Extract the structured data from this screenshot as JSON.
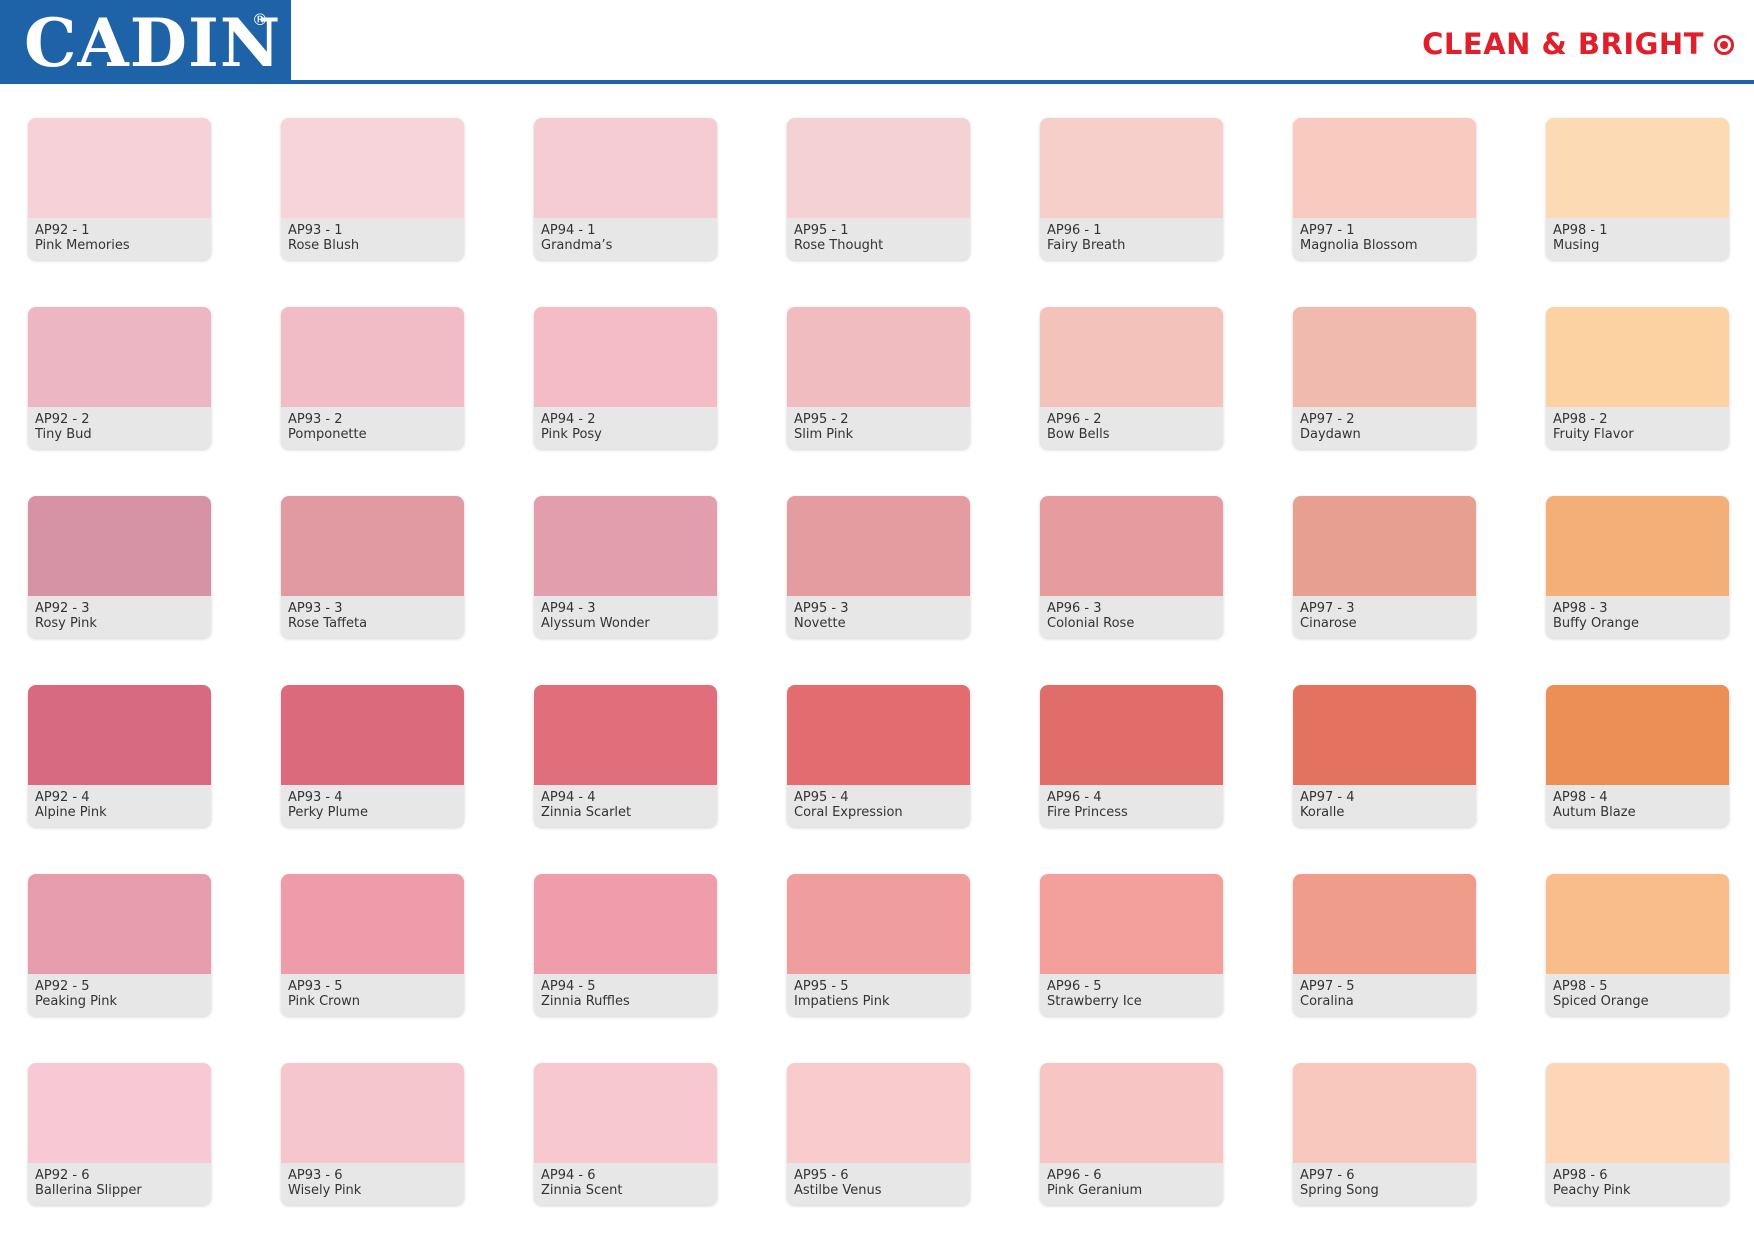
{
  "header": {
    "brand": "CADIN",
    "registered_mark": "®",
    "tagline": "CLEAN & BRIGHT",
    "colors": {
      "brand_blue": "#1e63a8",
      "tagline_red": "#e01f2b"
    }
  },
  "swatches": [
    [
      {
        "code": "AP92 - 1",
        "name": "Pink Memories",
        "color": "#f6d2d8"
      },
      {
        "code": "AP93 - 1",
        "name": "Rose Blush",
        "color": "#f7d3da"
      },
      {
        "code": "AP94 - 1",
        "name": "Grandma’s",
        "color": "#f5cbd4"
      },
      {
        "code": "AP95 - 1",
        "name": "Rose Thought",
        "color": "#f3d1d4"
      },
      {
        "code": "AP96 - 1",
        "name": "Fairy Breath",
        "color": "#f7cfca"
      },
      {
        "code": "AP97 - 1",
        "name": "Magnolia Blossom",
        "color": "#f9cbc0"
      },
      {
        "code": "AP98 - 1",
        "name": "Musing",
        "color": "#fcdab4"
      }
    ],
    [
      {
        "code": "AP92 - 2",
        "name": "Tiny Bud",
        "color": "#ecb6c2"
      },
      {
        "code": "AP93 - 2",
        "name": "Pomponette",
        "color": "#f1bcc5"
      },
      {
        "code": "AP94 - 2",
        "name": "Pink Posy",
        "color": "#f4bcc5"
      },
      {
        "code": "AP95 - 2",
        "name": "Slim Pink",
        "color": "#f0bcc0"
      },
      {
        "code": "AP96 - 2",
        "name": "Bow Bells",
        "color": "#f3c3bb"
      },
      {
        "code": "AP97 - 2",
        "name": "Daydawn",
        "color": "#f0baaf"
      },
      {
        "code": "AP98 - 2",
        "name": "Fruity Flavor",
        "color": "#fcd2a2"
      }
    ],
    [
      {
        "code": "AP92 - 3",
        "name": "Rosy Pink",
        "color": "#d693a5"
      },
      {
        "code": "AP93 - 3",
        "name": "Rose Taffeta",
        "color": "#e19aa2"
      },
      {
        "code": "AP94 - 3",
        "name": "Alyssum Wonder",
        "color": "#e29eac"
      },
      {
        "code": "AP95 - 3",
        "name": "Novette",
        "color": "#e49ca1"
      },
      {
        "code": "AP96 - 3",
        "name": "Colonial Rose",
        "color": "#e69c9e"
      },
      {
        "code": "AP97 - 3",
        "name": "Cinarose",
        "color": "#e79f91"
      },
      {
        "code": "AP98 - 3",
        "name": "Buffy Orange",
        "color": "#f4af78"
      }
    ],
    [
      {
        "code": "AP92 - 4",
        "name": "Alpine Pink",
        "color": "#d76a81"
      },
      {
        "code": "AP93 - 4",
        "name": "Perky Plume",
        "color": "#da6a7c"
      },
      {
        "code": "AP94 - 4",
        "name": "Zinnia Scarlet",
        "color": "#e06e7b"
      },
      {
        "code": "AP95 - 4",
        "name": "Coral Expression",
        "color": "#e36c71"
      },
      {
        "code": "AP96 - 4",
        "name": "Fire Princess",
        "color": "#e06d69"
      },
      {
        "code": "AP97 - 4",
        "name": "Koralle",
        "color": "#e47261"
      },
      {
        "code": "AP98 - 4",
        "name": "Autum Blaze",
        "color": "#ec8f57"
      }
    ],
    [
      {
        "code": "AP92 - 5",
        "name": "Peaking Pink",
        "color": "#e89daf"
      },
      {
        "code": "AP93 - 5",
        "name": "Pink Crown",
        "color": "#ef9caa"
      },
      {
        "code": "AP94 - 5",
        "name": "Zinnia Ruffles",
        "color": "#f09dab"
      },
      {
        "code": "AP95 - 5",
        "name": "Impatiens Pink",
        "color": "#f09d9e"
      },
      {
        "code": "AP96 - 5",
        "name": "Strawberry Ice",
        "color": "#f39f9c"
      },
      {
        "code": "AP97 - 5",
        "name": "Coralina",
        "color": "#f09c8b"
      },
      {
        "code": "AP98 - 5",
        "name": "Spiced Orange",
        "color": "#f8bd8b"
      }
    ],
    [
      {
        "code": "AP92 - 6",
        "name": "Ballerina Slipper",
        "color": "#f7c9d4"
      },
      {
        "code": "AP93 - 6",
        "name": "Wisely Pink",
        "color": "#f6c6cf"
      },
      {
        "code": "AP94 - 6",
        "name": "Zinnia Scent",
        "color": "#f7c8cf"
      },
      {
        "code": "AP95 - 6",
        "name": "Astilbe Venus",
        "color": "#f8cccd"
      },
      {
        "code": "AP96 - 6",
        "name": "Pink Geranium",
        "color": "#f7c6c4"
      },
      {
        "code": "AP97 - 6",
        "name": "Spring Song",
        "color": "#f8c8bf"
      },
      {
        "code": "AP98  - 6",
        "name": "Peachy Pink",
        "color": "#fcd6b6"
      }
    ]
  ]
}
